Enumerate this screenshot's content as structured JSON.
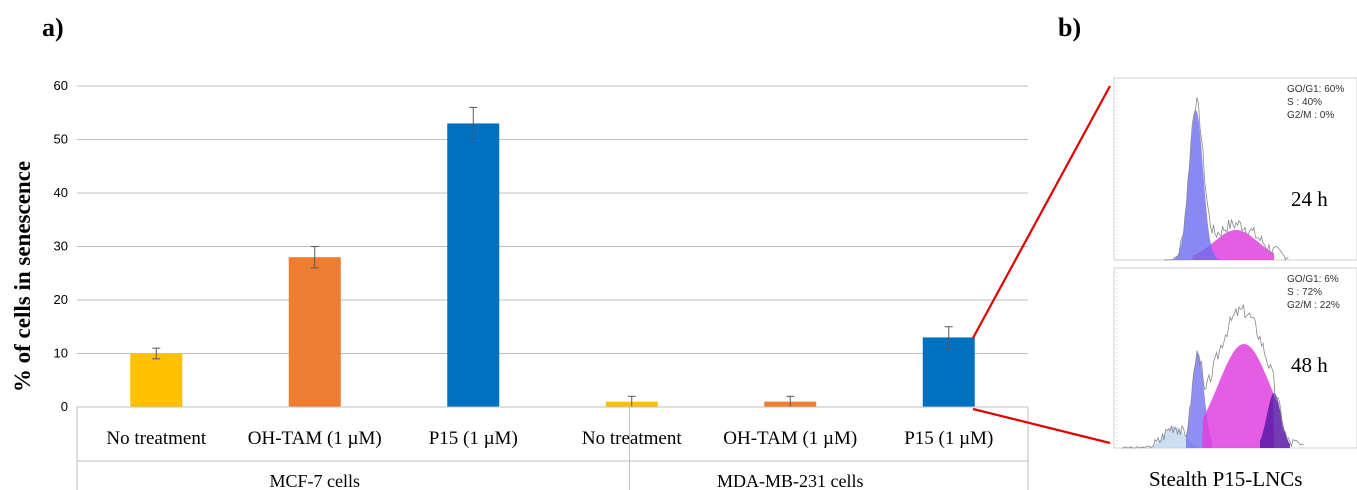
{
  "panels": {
    "a": "a)",
    "b": "b)"
  },
  "chart_data": {
    "type": "bar",
    "ylabel": "% of cells in senescence",
    "ylim": [
      0,
      60
    ],
    "yticks": [
      0,
      10,
      20,
      30,
      40,
      50,
      60
    ],
    "grid": true,
    "groups": [
      {
        "name": "MCF-7 cells",
        "bars": [
          {
            "label": "No treatment",
            "value": 10,
            "error": 1,
            "color": "#FFC000"
          },
          {
            "label": "OH-TAM (1 µM)",
            "value": 28,
            "error": 2,
            "color": "#ED7D31"
          },
          {
            "label": "P15 (1 µM)",
            "value": 53,
            "error": 3,
            "color": "#0070C0"
          }
        ]
      },
      {
        "name": "MDA-MB-231 cells",
        "bars": [
          {
            "label": "No treatment",
            "value": 1,
            "error": 1,
            "color": "#FFC000"
          },
          {
            "label": "OH-TAM (1 µM)",
            "value": 1,
            "error": 1,
            "color": "#ED7D31"
          },
          {
            "label": "P15 (1 µM)",
            "value": 13,
            "error": 2,
            "color": "#0070C0"
          }
        ]
      }
    ]
  },
  "cell_cycle": {
    "caption": "Stealth P15-LNCs",
    "plots": [
      {
        "time": "24 h",
        "stats": [
          "GO/G1: 60%",
          "S : 40%",
          "G2/M : 0%"
        ]
      },
      {
        "time": "48 h",
        "stats": [
          "GO/G1: 6%",
          "S : 72%",
          "G2/M : 22%"
        ]
      }
    ],
    "colors": {
      "g1": "#6B6BF0",
      "s": "#E040E0",
      "g2m": "#5A1AA8",
      "outline": "#888888"
    }
  }
}
